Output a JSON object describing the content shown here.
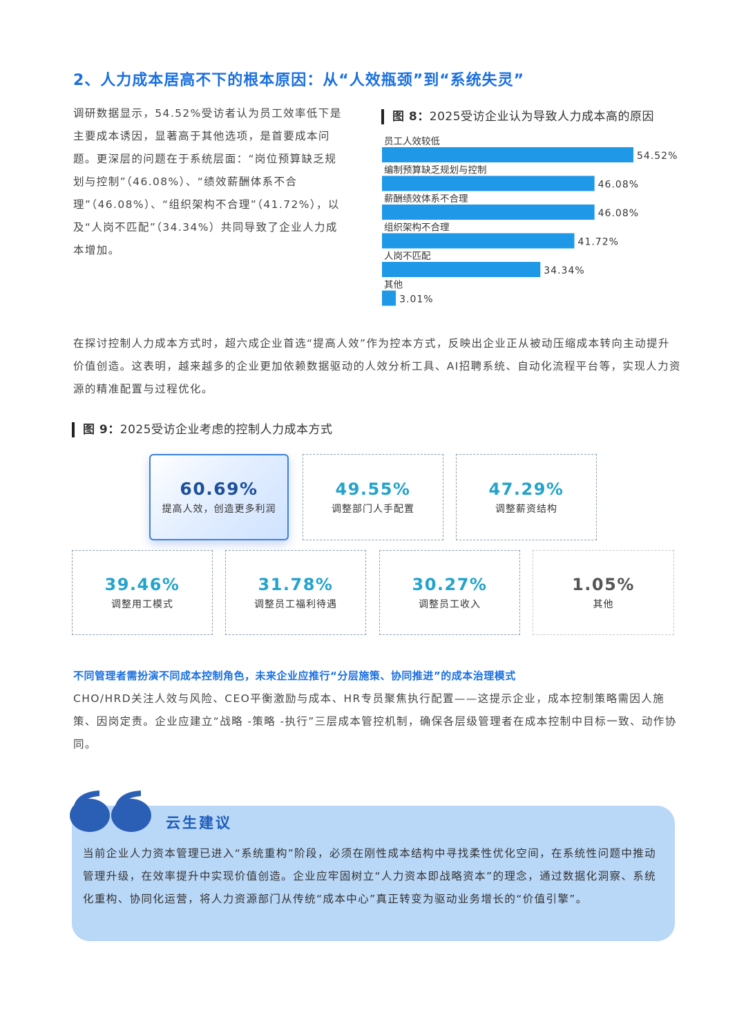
{
  "heading": "2、人力成本居高不下的根本原因：从“人效瓶颈”到“系统失灵”",
  "para1": "调研数据显示，54.52%受访者认为员工效率低下是主要成本诱因，显著高于其他选项，是首要成本问题。更深层的问题在于系统层面：“岗位预算缺乏规划与控制”（46.08%）、“绩效薪酬体系不合理”（46.08%）、“组织架构不合理”（41.72%），以及“人岗不匹配”（34.34%）共同导致了企业人力成本增加。",
  "fig8": {
    "label": "图 8：",
    "title": "2025受访企业认为导致人力成本高的原因"
  },
  "chart_data": {
    "type": "bar",
    "orientation": "horizontal",
    "categories": [
      "员工人效较低",
      "编制预算缺乏规划与控制",
      "薪酬绩效体系不合理",
      "组织架构不合理",
      "人岗不匹配",
      "其他"
    ],
    "values": [
      54.52,
      46.08,
      46.08,
      41.72,
      34.34,
      3.01
    ],
    "value_labels": [
      "54.52%",
      "46.08%",
      "46.08%",
      "41.72%",
      "34.34%",
      "3.01%"
    ],
    "color": "#1f98e8",
    "xlim": [
      0,
      54.52
    ]
  },
  "para2": "在探讨控制人力成本方式时，超六成企业首选“提高人效”作为控本方式，反映出企业正从被动压缩成本转向主动提升价值创造。这表明，越来越多的企业更加依赖数据驱动的人效分析工具、AI招聘系统、自动化流程平台等，实现人力资源的精准配置与过程优化。",
  "fig9": {
    "label": "图 9：",
    "title": "2025受访企业考虑的控制人力成本方式"
  },
  "cards": [
    {
      "pct": "60.69%",
      "label": "提高人效，创造更多利润"
    },
    {
      "pct": "49.55%",
      "label": "调整部门人手配置"
    },
    {
      "pct": "47.29%",
      "label": "调整薪资结构"
    },
    {
      "pct": "39.46%",
      "label": "调整用工模式"
    },
    {
      "pct": "31.78%",
      "label": "调整员工福利待遇"
    },
    {
      "pct": "30.27%",
      "label": "调整员工收入"
    },
    {
      "pct": "1.05%",
      "label": "其他"
    }
  ],
  "subheading": "不同管理者需扮演不同成本控制角色，未来企业应推行“分层施策、协同推进”的成本治理模式",
  "para3": "CHO/HRD关注人效与风险、CEO平衡激励与成本、HR专员聚焦执行配置——这提示企业，成本控制策略需因人施策、因岗定责。企业应建立“战略 -策略 -执行”三层成本管控机制，确保各层级管理者在成本控制中目标一致、动作协同。",
  "recommendation": {
    "title": "云生建议",
    "text": "当前企业人力资本管理已进入“系统重构”阶段，必须在刚性成本结构中寻找柔性优化空间，在系统性问题中推动管理升级，在效率提升中实现价值创造。企业应牢固树立“人力资本即战略资本”的理念，通过数据化洞察、系统化重构、协同化运营，将人力资源部门从传统“成本中心”真正转变为驱动业务增长的“价值引擎”。"
  }
}
